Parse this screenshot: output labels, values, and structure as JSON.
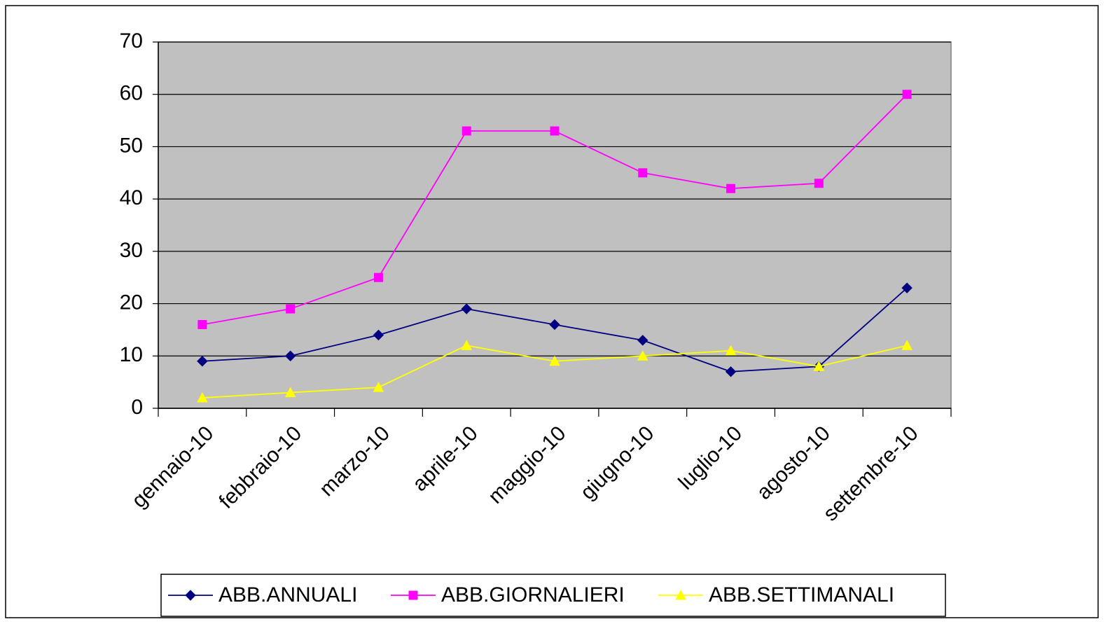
{
  "chart_data": {
    "type": "line",
    "categories": [
      "gennaio-10",
      "febbraio-10",
      "marzo-10",
      "aprile-10",
      "maggio-10",
      "giugno-10",
      "luglio-10",
      "agosto-10",
      "settembre-10"
    ],
    "series": [
      {
        "name": "ABB.ANNUALI",
        "color": "#000080",
        "marker": "diamond",
        "values": [
          9,
          10,
          14,
          19,
          16,
          13,
          7,
          8,
          23
        ]
      },
      {
        "name": "ABB.GIORNALIERI",
        "color": "#ff00ff",
        "marker": "square",
        "values": [
          16,
          19,
          25,
          53,
          53,
          45,
          42,
          43,
          60
        ]
      },
      {
        "name": "ABB.SETTIMANALI",
        "color": "#ffff00",
        "marker": "triangle",
        "values": [
          2,
          3,
          4,
          12,
          9,
          10,
          11,
          8,
          12
        ]
      }
    ],
    "ylim": [
      0,
      70
    ],
    "yticks": [
      0,
      10,
      20,
      30,
      40,
      50,
      60,
      70
    ],
    "grid": true,
    "legend": "bottom"
  }
}
